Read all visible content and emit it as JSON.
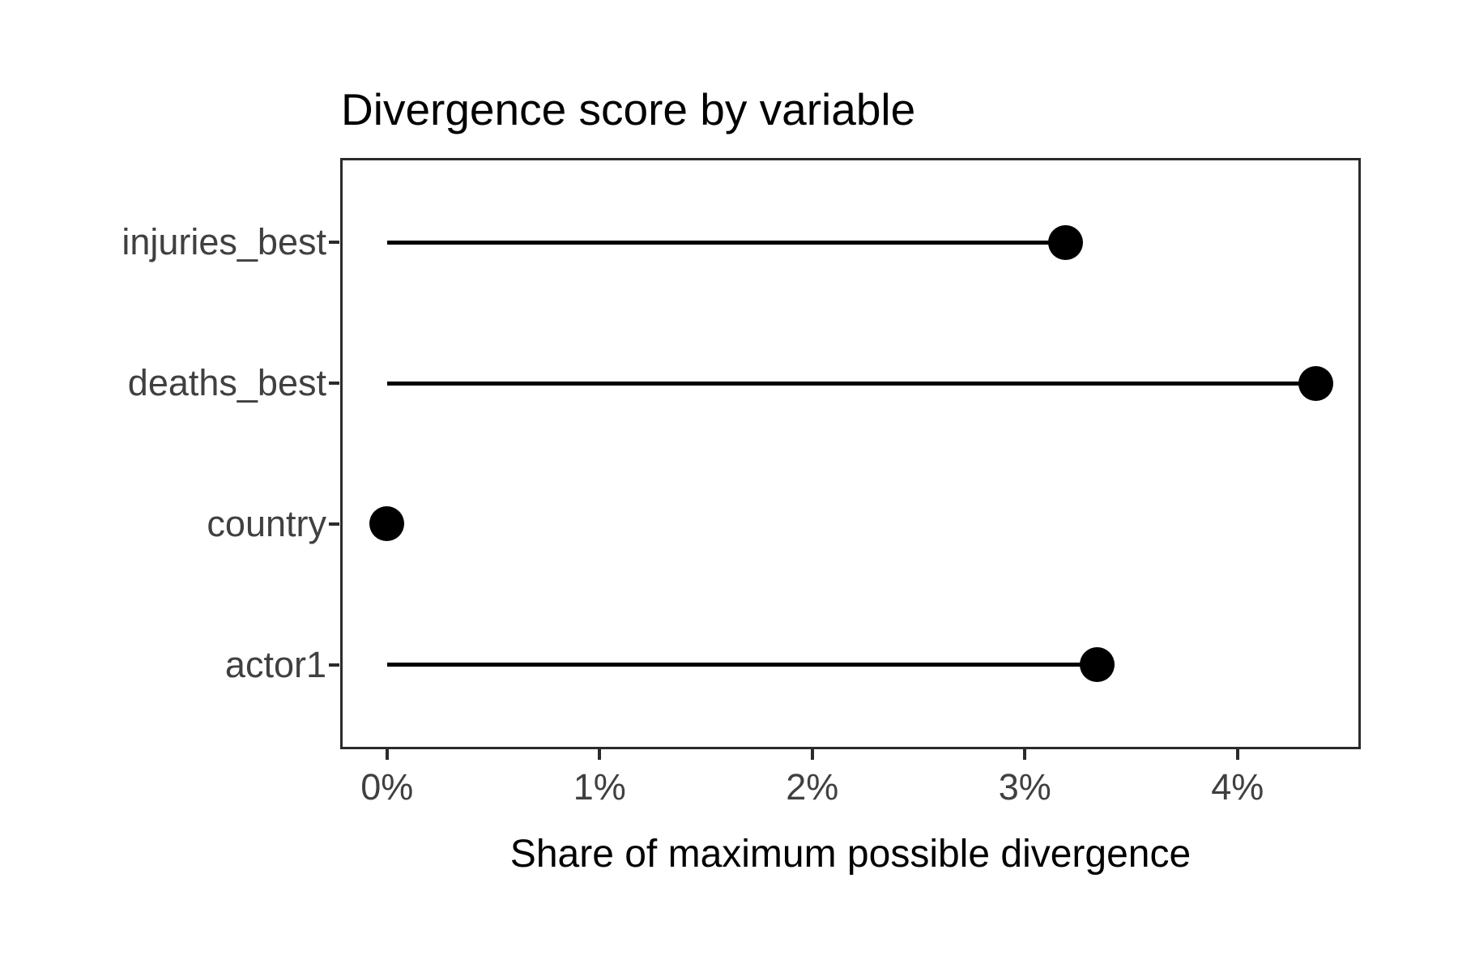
{
  "chart_data": {
    "type": "lollipop",
    "title": "Divergence score by variable",
    "xlabel": "Share of maximum possible divergence",
    "ylabel": "",
    "categories": [
      "injuries_best",
      "deaths_best",
      "country",
      "actor1"
    ],
    "values": [
      3.19,
      4.37,
      0.0,
      3.34
    ],
    "value_unit": "percent",
    "x_ticks": [
      {
        "value": 0,
        "label": "0%"
      },
      {
        "value": 1,
        "label": "1%"
      },
      {
        "value": 2,
        "label": "2%"
      },
      {
        "value": 3,
        "label": "3%"
      },
      {
        "value": 4,
        "label": "4%"
      }
    ],
    "xlim": [
      -0.22,
      4.58
    ],
    "grid": false,
    "legend": "none",
    "colors": {
      "point": "#000000",
      "stem": "#000000",
      "panel_border": "#2b2b2b",
      "axis_text": "#404040",
      "title_text": "#000000",
      "background": "#ffffff"
    }
  }
}
